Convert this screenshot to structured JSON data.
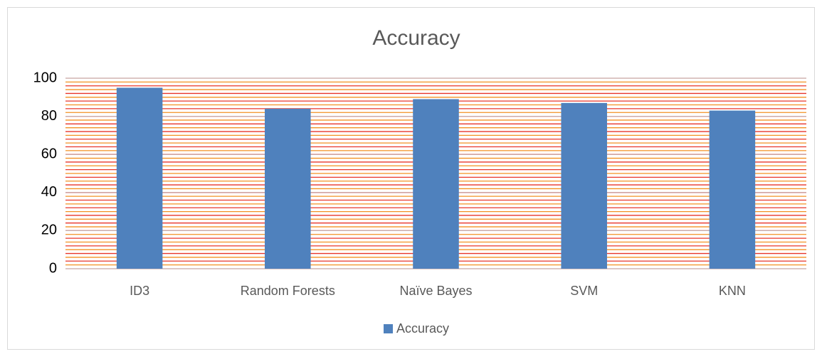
{
  "chart_data": {
    "type": "bar",
    "title": "Accuracy",
    "categories": [
      "ID3",
      "Random Forests",
      "Naïve Bayes",
      "SVM",
      "KNN"
    ],
    "series": [
      {
        "name": "Accuracy",
        "color": "#4f81bd",
        "values": [
          95,
          84,
          89,
          87,
          83
        ]
      }
    ],
    "ylim": [
      0,
      100
    ],
    "yticks": [
      0,
      20,
      40,
      60,
      80,
      100
    ],
    "grid": true,
    "minor_grid_step": 4,
    "grid_colors": [
      "#e8352a",
      "#f39123"
    ],
    "legend": "bottom"
  }
}
